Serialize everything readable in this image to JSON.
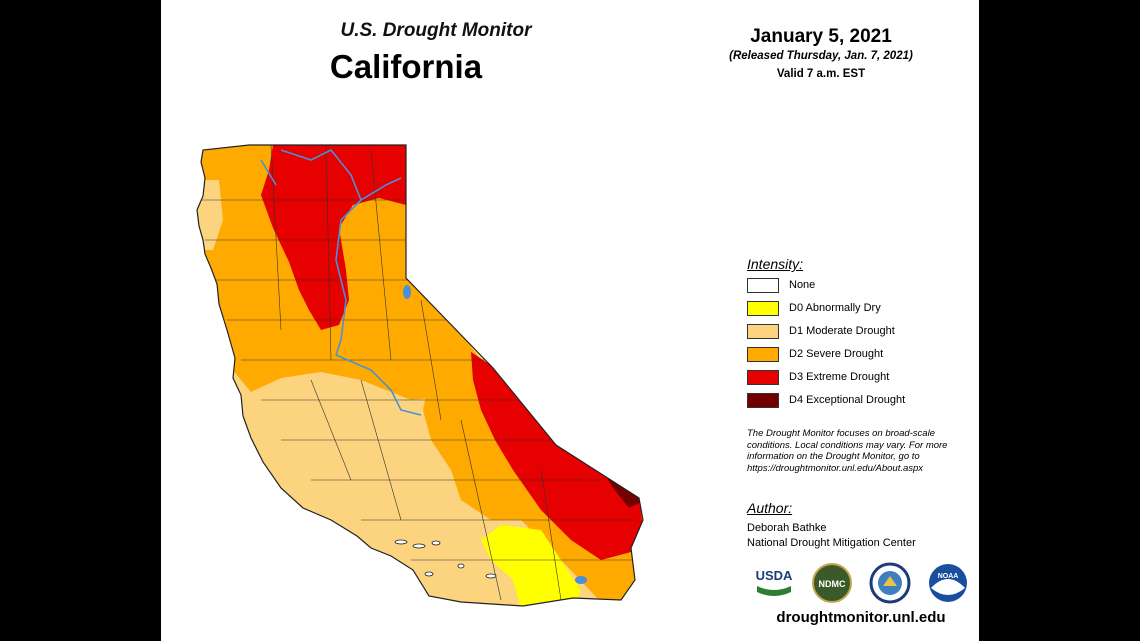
{
  "header": {
    "title": "U.S. Drought Monitor",
    "state": "California",
    "date": "January 5, 2021",
    "released": "(Released Thursday, Jan. 7, 2021)",
    "valid": "Valid 7 a.m. EST"
  },
  "legend": {
    "heading": "Intensity:",
    "items": [
      {
        "label": "None",
        "color": "#ffffff"
      },
      {
        "label": "D0 Abnormally Dry",
        "color": "#ffff00"
      },
      {
        "label": "D1 Moderate Drought",
        "color": "#fcd37f"
      },
      {
        "label": "D2 Severe Drought",
        "color": "#ffaa00"
      },
      {
        "label": "D3 Extreme Drought",
        "color": "#e60000"
      },
      {
        "label": "D4 Exceptional Drought",
        "color": "#730000"
      }
    ]
  },
  "note": "The Drought Monitor focuses on broad-scale conditions. Local conditions may vary. For more information on the Drought Monitor, go to https://droughtmonitor.unl.edu/About.aspx",
  "author": {
    "heading": "Author:",
    "name": "Deborah Bathke",
    "organization": "National Drought Mitigation Center"
  },
  "logos": [
    {
      "name": "usda-logo",
      "text": "USDA"
    },
    {
      "name": "ndmc-logo",
      "text": "NDMC"
    },
    {
      "name": "commerce-logo",
      "text": ""
    },
    {
      "name": "noaa-logo",
      "text": "NOAA"
    }
  ],
  "footer": {
    "url": "droughtmonitor.unl.edu"
  },
  "colors": {
    "water": "#4a90d9",
    "county_lines": "#333333"
  }
}
